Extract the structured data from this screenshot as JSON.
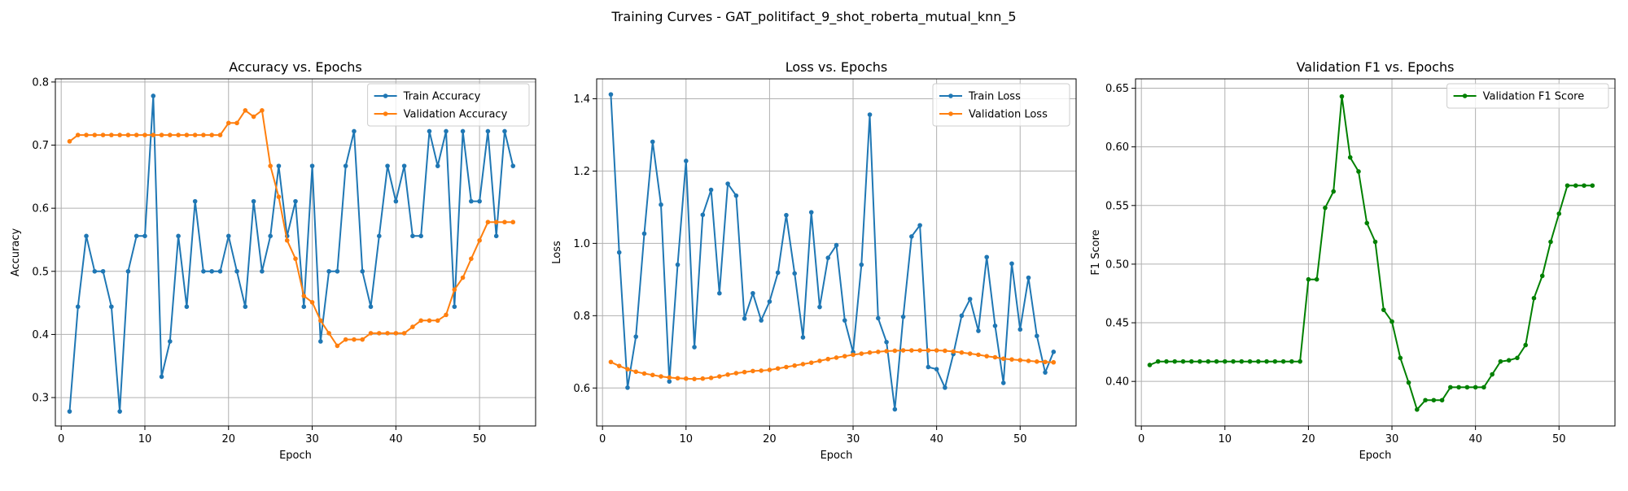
{
  "figure": {
    "suptitle": "Training Curves - GAT_politifact_9_shot_roberta_mutual_knn_5"
  },
  "colors": {
    "train": "#1f77b4",
    "validation": "#ff7f0e",
    "f1": "#008000",
    "grid": "#b0b0b0"
  },
  "chart_data": [
    {
      "type": "line",
      "title": "Accuracy vs. Epochs",
      "xlabel": "Epoch",
      "ylabel": "Accuracy",
      "xlim": [
        -0.7,
        56.7
      ],
      "ylim": [
        0.255,
        0.805
      ],
      "xticks": [
        0,
        10,
        20,
        30,
        40,
        50
      ],
      "yticks": [
        0.3,
        0.4,
        0.5,
        0.6,
        0.7,
        0.8
      ],
      "ytick_labels": [
        "0.3",
        "0.4",
        "0.5",
        "0.6",
        "0.7",
        "0.8"
      ],
      "grid": true,
      "legend": "upper right",
      "x": [
        1,
        2,
        3,
        4,
        5,
        6,
        7,
        8,
        9,
        10,
        11,
        12,
        13,
        14,
        15,
        16,
        17,
        18,
        19,
        20,
        21,
        22,
        23,
        24,
        25,
        26,
        27,
        28,
        29,
        30,
        31,
        32,
        33,
        34,
        35,
        36,
        37,
        38,
        39,
        40,
        41,
        42,
        43,
        44,
        45,
        46,
        47,
        48,
        49,
        50,
        51,
        52,
        53,
        54
      ],
      "series": [
        {
          "name": "Train Accuracy",
          "color": "#1f77b4",
          "values": [
            0.278,
            0.444,
            0.556,
            0.5,
            0.5,
            0.444,
            0.278,
            0.5,
            0.556,
            0.556,
            0.778,
            0.333,
            0.389,
            0.556,
            0.444,
            0.611,
            0.5,
            0.5,
            0.5,
            0.556,
            0.5,
            0.444,
            0.611,
            0.5,
            0.556,
            0.667,
            0.556,
            0.611,
            0.444,
            0.667,
            0.389,
            0.5,
            0.5,
            0.667,
            0.722,
            0.5,
            0.444,
            0.556,
            0.667,
            0.611,
            0.667,
            0.556,
            0.556,
            0.722,
            0.667,
            0.722,
            0.444,
            0.722,
            0.611,
            0.611,
            0.722,
            0.556,
            0.722,
            0.667
          ]
        },
        {
          "name": "Validation Accuracy",
          "color": "#ff7f0e",
          "values": [
            0.706,
            0.716,
            0.716,
            0.716,
            0.716,
            0.716,
            0.716,
            0.716,
            0.716,
            0.716,
            0.716,
            0.716,
            0.716,
            0.716,
            0.716,
            0.716,
            0.716,
            0.716,
            0.716,
            0.735,
            0.735,
            0.755,
            0.745,
            0.755,
            0.667,
            0.618,
            0.549,
            0.52,
            0.461,
            0.451,
            0.422,
            0.402,
            0.382,
            0.392,
            0.392,
            0.392,
            0.402,
            0.402,
            0.402,
            0.402,
            0.402,
            0.412,
            0.422,
            0.422,
            0.422,
            0.431,
            0.471,
            0.49,
            0.52,
            0.549,
            0.578,
            0.578,
            0.578,
            0.578
          ]
        }
      ]
    },
    {
      "type": "line",
      "title": "Loss vs. Epochs",
      "xlabel": "Epoch",
      "ylabel": "Loss",
      "xlim": [
        -0.7,
        56.7
      ],
      "ylim": [
        0.495,
        1.455
      ],
      "xticks": [
        0,
        10,
        20,
        30,
        40,
        50
      ],
      "yticks": [
        0.6,
        0.8,
        1.0,
        1.2,
        1.4
      ],
      "ytick_labels": [
        "0.6",
        "0.8",
        "1.0",
        "1.2",
        "1.4"
      ],
      "grid": true,
      "legend": "upper right",
      "x": [
        1,
        2,
        3,
        4,
        5,
        6,
        7,
        8,
        9,
        10,
        11,
        12,
        13,
        14,
        15,
        16,
        17,
        18,
        19,
        20,
        21,
        22,
        23,
        24,
        25,
        26,
        27,
        28,
        29,
        30,
        31,
        32,
        33,
        34,
        35,
        36,
        37,
        38,
        39,
        40,
        41,
        42,
        43,
        44,
        45,
        46,
        47,
        48,
        49,
        50,
        51,
        52,
        53,
        54
      ],
      "series": [
        {
          "name": "Train Loss",
          "color": "#1f77b4",
          "values": [
            1.412,
            0.975,
            0.601,
            0.742,
            1.027,
            1.281,
            1.107,
            0.618,
            0.941,
            1.228,
            0.713,
            1.079,
            1.148,
            0.862,
            1.165,
            1.132,
            0.792,
            0.862,
            0.787,
            0.839,
            0.919,
            1.078,
            0.917,
            0.74,
            1.086,
            0.824,
            0.96,
            0.995,
            0.787,
            0.699,
            0.941,
            1.356,
            0.793,
            0.727,
            0.541,
            0.797,
            1.019,
            1.05,
            0.658,
            0.652,
            0.601,
            0.694,
            0.8,
            0.846,
            0.758,
            0.962,
            0.772,
            0.614,
            0.944,
            0.762,
            0.905,
            0.744,
            0.643,
            0.7
          ]
        },
        {
          "name": "Validation Loss",
          "color": "#ff7f0e",
          "values": [
            0.672,
            0.661,
            0.652,
            0.645,
            0.64,
            0.636,
            0.632,
            0.629,
            0.627,
            0.626,
            0.625,
            0.626,
            0.628,
            0.632,
            0.637,
            0.641,
            0.644,
            0.647,
            0.648,
            0.65,
            0.654,
            0.658,
            0.662,
            0.666,
            0.67,
            0.675,
            0.68,
            0.684,
            0.688,
            0.692,
            0.695,
            0.698,
            0.7,
            0.702,
            0.703,
            0.704,
            0.704,
            0.704,
            0.704,
            0.704,
            0.703,
            0.701,
            0.698,
            0.695,
            0.692,
            0.688,
            0.685,
            0.681,
            0.679,
            0.677,
            0.675,
            0.673,
            0.672,
            0.671
          ]
        }
      ]
    },
    {
      "type": "line",
      "title": "Validation F1 vs. Epochs",
      "xlabel": "Epoch",
      "ylabel": "F1 Score",
      "xlim": [
        -0.7,
        56.7
      ],
      "ylim": [
        0.362,
        0.658
      ],
      "xticks": [
        0,
        10,
        20,
        30,
        40,
        50
      ],
      "yticks": [
        0.4,
        0.45,
        0.5,
        0.55,
        0.6,
        0.65
      ],
      "ytick_labels": [
        "0.40",
        "0.45",
        "0.50",
        "0.55",
        "0.60",
        "0.65"
      ],
      "grid": true,
      "legend": "upper right",
      "x": [
        1,
        2,
        3,
        4,
        5,
        6,
        7,
        8,
        9,
        10,
        11,
        12,
        13,
        14,
        15,
        16,
        17,
        18,
        19,
        20,
        21,
        22,
        23,
        24,
        25,
        26,
        27,
        28,
        29,
        30,
        31,
        32,
        33,
        34,
        35,
        36,
        37,
        38,
        39,
        40,
        41,
        42,
        43,
        44,
        45,
        46,
        47,
        48,
        49,
        50,
        51,
        52,
        53,
        54
      ],
      "series": [
        {
          "name": "Validation F1 Score",
          "color": "#008000",
          "values": [
            0.414,
            0.417,
            0.417,
            0.417,
            0.417,
            0.417,
            0.417,
            0.417,
            0.417,
            0.417,
            0.417,
            0.417,
            0.417,
            0.417,
            0.417,
            0.417,
            0.417,
            0.417,
            0.417,
            0.487,
            0.487,
            0.548,
            0.562,
            0.643,
            0.591,
            0.579,
            0.535,
            0.519,
            0.461,
            0.451,
            0.42,
            0.399,
            0.376,
            0.384,
            0.384,
            0.384,
            0.395,
            0.395,
            0.395,
            0.395,
            0.395,
            0.406,
            0.417,
            0.418,
            0.42,
            0.431,
            0.471,
            0.49,
            0.519,
            0.543,
            0.567,
            0.567,
            0.567,
            0.567
          ]
        }
      ]
    }
  ]
}
